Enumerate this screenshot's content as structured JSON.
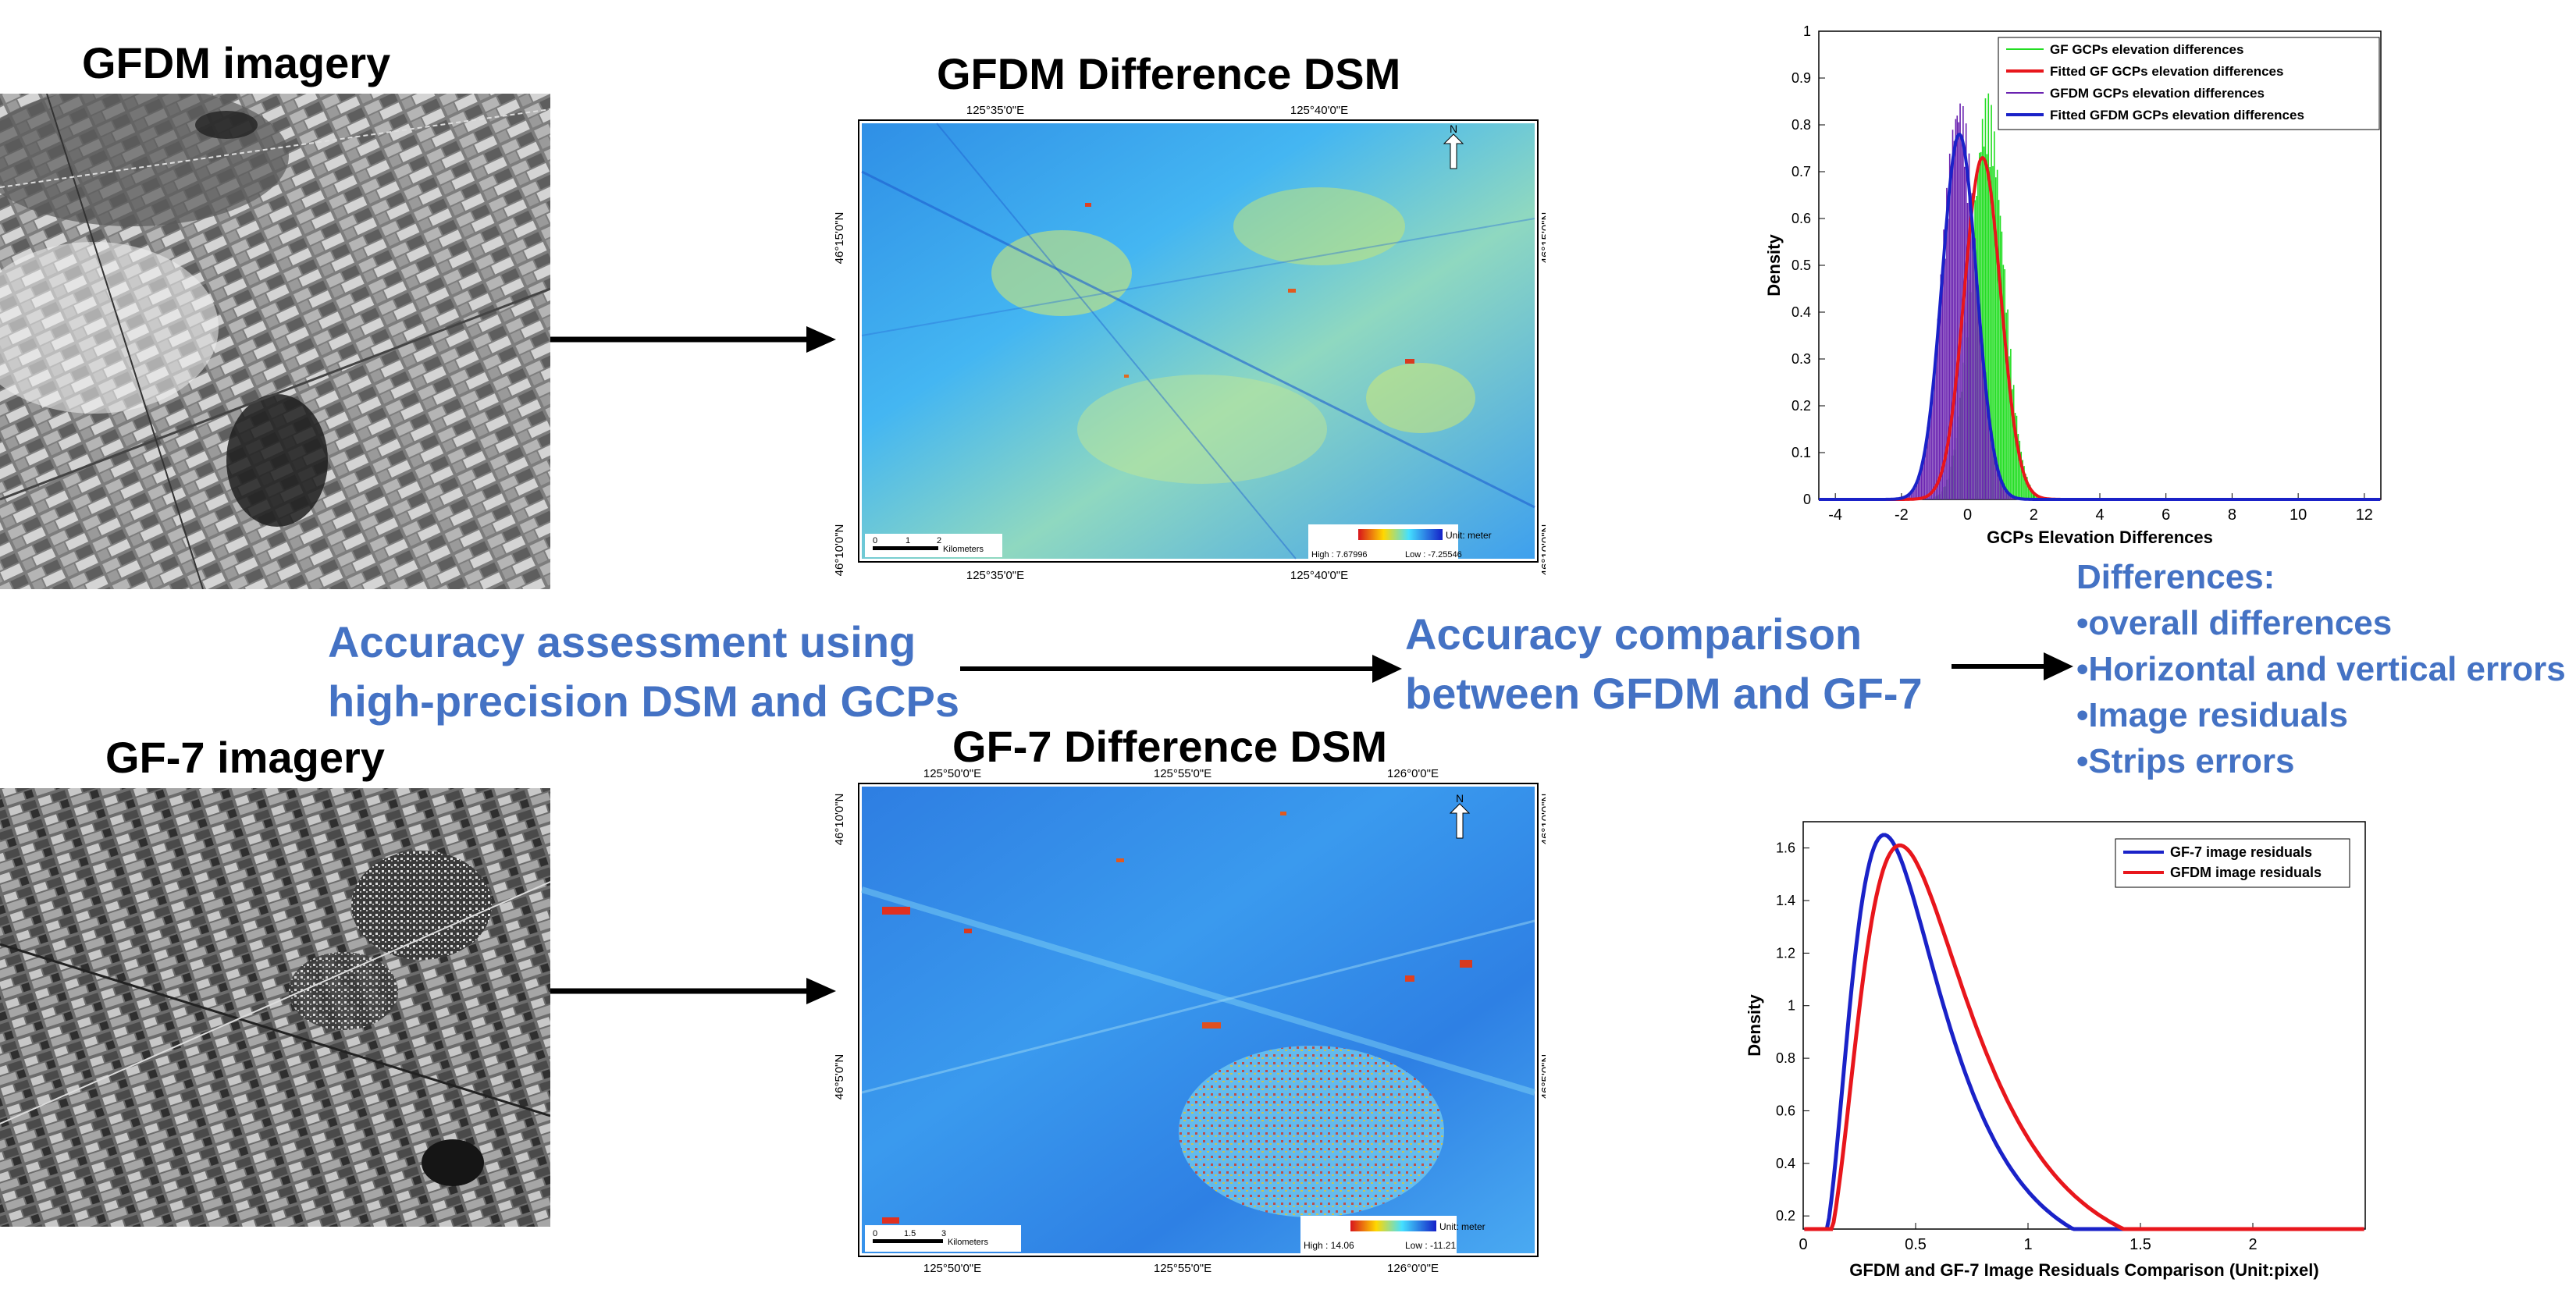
{
  "panels": {
    "gfdm_imagery_title": "GFDM imagery",
    "gf7_imagery_title": "GF-7 imagery",
    "gfdm_dsm_title": "GFDM Difference DSM",
    "gf7_dsm_title": "GF-7 Difference DSM"
  },
  "flow": {
    "assessment_line1": "Accuracy assessment using",
    "assessment_line2": "high-precision DSM and GCPs",
    "comparison_line1": "Accuracy comparison",
    "comparison_line2": "between GFDM and GF-7"
  },
  "differences": {
    "heading": "Differences:",
    "items": [
      "overall differences",
      "Horizontal and vertical errors",
      "Image residuals",
      "Strips errors"
    ]
  },
  "map_gfdm": {
    "top_ticks": [
      "125°35'0\"E",
      "125°40'0\"E"
    ],
    "bottom_ticks": [
      "125°35'0\"E",
      "125°40'0\"E"
    ],
    "left_ticks": [
      "46°15'0\"N",
      "46°10'0\"N"
    ],
    "right_ticks": [
      "46°15'0\"N",
      "46°10'0\"N"
    ],
    "north": "N",
    "scale_labels": [
      "0",
      "1",
      "2"
    ],
    "scale_unit": "Kilometers",
    "legend_unit": "Unit: meter",
    "legend_high": "High : 7.67996",
    "legend_low": "Low : -7.25546"
  },
  "map_gf7": {
    "top_ticks": [
      "125°50'0\"E",
      "125°55'0\"E",
      "126°0'0\"E"
    ],
    "bottom_ticks": [
      "125°50'0\"E",
      "125°55'0\"E",
      "126°0'0\"E"
    ],
    "left_ticks": [
      "46°10'0\"N",
      "46°5'0\"N"
    ],
    "right_ticks": [
      "46°10'0\"N",
      "46°5'0\"N"
    ],
    "north": "N",
    "scale_labels": [
      "0",
      "1.5",
      "3"
    ],
    "scale_unit": "Kilometers",
    "legend_unit": "Unit: meter",
    "legend_high": "High : 14.06",
    "legend_low": "Low : -11.21"
  },
  "colors": {
    "accent_blue": "#4472c4",
    "green_series": "#22dd22",
    "red_series": "#e8161c",
    "purple_series": "#6a22b0",
    "blue_series": "#1a22c8"
  },
  "chart_data": [
    {
      "type": "line",
      "title": "",
      "xlabel": "GCPs Elevation Differences",
      "ylabel": "Density",
      "xlim": [
        -4.5,
        12.5
      ],
      "ylim": [
        0,
        1
      ],
      "xticks": [
        -4,
        -2,
        0,
        2,
        4,
        6,
        8,
        10,
        12
      ],
      "yticks": [
        0,
        0.1,
        0.2,
        0.3,
        0.4,
        0.5,
        0.6,
        0.7,
        0.8,
        0.9,
        1
      ],
      "legend": "top-right",
      "series": [
        {
          "name": "GF GCPs elevation differences",
          "color": "#22dd22",
          "kind": "histogram",
          "mu": 0.6,
          "sigma": 0.5,
          "peak": 0.79
        },
        {
          "name": "Fitted GF GCPs elevation differences",
          "color": "#e8161c",
          "kind": "fit",
          "mu": 0.45,
          "sigma": 0.55,
          "peak": 0.73
        },
        {
          "name": "GFDM GCPs elevation differences",
          "color": "#6a22b0",
          "kind": "histogram",
          "mu": -0.25,
          "sigma": 0.52,
          "peak": 0.79
        },
        {
          "name": "Fitted GFDM GCPs elevation differences",
          "color": "#1a22c8",
          "kind": "fit",
          "mu": -0.25,
          "sigma": 0.52,
          "peak": 0.78
        }
      ]
    },
    {
      "type": "line",
      "title": "",
      "xlabel": "GFDM and GF-7 Image Residuals Comparison (Unit:pixel)",
      "ylabel": "Density",
      "xlim": [
        0,
        2.5
      ],
      "ylim": [
        0.15,
        1.7
      ],
      "xticks": [
        0,
        0.5,
        1,
        1.5,
        2
      ],
      "yticks": [
        0.2,
        0.4,
        0.6,
        0.8,
        1,
        1.2,
        1.4,
        1.6
      ],
      "legend": "top-right",
      "series": [
        {
          "name": "GF-7 image residuals",
          "color": "#1a22c8",
          "mode": 0.36,
          "peak": 1.65
        },
        {
          "name": "GFDM image residuals",
          "color": "#e8161c",
          "mode": 0.43,
          "peak": 1.61
        }
      ]
    }
  ]
}
